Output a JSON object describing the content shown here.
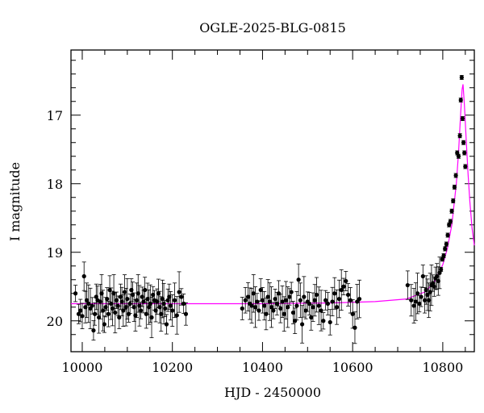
{
  "chart_data": {
    "type": "scatter",
    "title": "OGLE-2025-BLG-0815",
    "xlabel": "HJD - 2450000",
    "ylabel": "I magnitude",
    "xlim": [
      9975,
      10870
    ],
    "ylim": [
      20.45,
      16.05
    ],
    "y_inverted": true,
    "xticks": [
      10000,
      10200,
      10400,
      10600,
      10800
    ],
    "xtick_labels": [
      "10000",
      "10200",
      "10400",
      "10600",
      "10800"
    ],
    "yticks": [
      17,
      18,
      19,
      20
    ],
    "ytick_labels": [
      "17",
      "18",
      "19",
      "20"
    ],
    "grid": false,
    "legend": "none",
    "colors": {
      "points": "#000000",
      "model": "#ff00ff",
      "frame": "#000000"
    },
    "model_curve": {
      "name": "",
      "x": [
        9975,
        10100,
        10250,
        10400,
        10550,
        10650,
        10720,
        10760,
        10780,
        10800,
        10810,
        10820,
        10830,
        10835,
        10840,
        10843,
        10845,
        10848,
        10852,
        10856,
        10860,
        10865,
        10870
      ],
      "y": [
        19.75,
        19.75,
        19.75,
        19.75,
        19.74,
        19.72,
        19.68,
        19.58,
        19.45,
        19.18,
        18.95,
        18.6,
        18.0,
        17.55,
        16.95,
        16.62,
        16.55,
        16.85,
        17.35,
        17.85,
        18.25,
        18.65,
        18.9
      ]
    },
    "series": [
      {
        "x": [
          9985,
          9992,
          9996,
          10000,
          10004,
          10007,
          10010,
          10014,
          10018,
          10022,
          10025,
          10028,
          10031,
          10034,
          10037,
          10040,
          10043,
          10046,
          10049,
          10052,
          10055,
          10058,
          10061,
          10064,
          10067,
          10070,
          10073,
          10076,
          10079,
          10082,
          10085,
          10088,
          10091,
          10094,
          10097,
          10100,
          10103,
          10106,
          10109,
          10112,
          10115,
          10118,
          10121,
          10124,
          10127,
          10130,
          10133,
          10136,
          10139,
          10142,
          10145,
          10148,
          10151,
          10154,
          10157,
          10160,
          10163,
          10166,
          10169,
          10172,
          10175,
          10178,
          10181,
          10184,
          10187,
          10190,
          10193,
          10196,
          10200,
          10205,
          10210,
          10215,
          10220,
          10225,
          10230
        ],
        "y": [
          19.6,
          19.9,
          19.85,
          19.93,
          19.35,
          19.8,
          19.7,
          19.75,
          19.82,
          19.78,
          20.14,
          19.9,
          19.65,
          19.7,
          19.95,
          19.72,
          19.6,
          19.85,
          20.05,
          19.8,
          19.68,
          19.9,
          19.55,
          19.75,
          19.82,
          19.6,
          19.88,
          19.7,
          19.78,
          19.95,
          19.65,
          19.72,
          19.85,
          19.58,
          19.8,
          19.68,
          19.9,
          19.75,
          19.55,
          19.62,
          19.8,
          19.92,
          19.7,
          19.6,
          19.78,
          19.85,
          19.65,
          19.72,
          19.55,
          19.9,
          19.68,
          19.8,
          19.75,
          19.95,
          19.62,
          19.7,
          19.85,
          19.72,
          19.6,
          19.8,
          19.9,
          19.68,
          19.75,
          19.82,
          20.05,
          19.7,
          19.65,
          19.78,
          19.85,
          19.7,
          19.92,
          19.58,
          19.65,
          19.75,
          19.9
        ]
      },
      {
        "x": [
          10355,
          10362,
          10368,
          10372,
          10376,
          10380,
          10384,
          10388,
          10392,
          10396,
          10400,
          10404,
          10408,
          10412,
          10416,
          10420,
          10424,
          10428,
          10432,
          10436,
          10440,
          10444,
          10448,
          10452,
          10456,
          10460,
          10464,
          10468,
          10472,
          10476,
          10480,
          10484,
          10488,
          10492,
          10496,
          10500,
          10504,
          10508,
          10512,
          10516,
          10520,
          10525,
          10530,
          10535,
          10540,
          10545,
          10550,
          10555,
          10560,
          10565,
          10570,
          10575,
          10580,
          10585,
          10590,
          10595,
          10600,
          10605,
          10610,
          10615
        ],
        "y": [
          19.82,
          19.7,
          19.65,
          19.75,
          19.78,
          19.6,
          19.8,
          19.72,
          19.85,
          19.55,
          19.7,
          19.78,
          19.9,
          19.65,
          19.72,
          19.8,
          19.85,
          19.68,
          19.75,
          19.6,
          19.82,
          19.72,
          19.9,
          19.7,
          19.8,
          19.65,
          19.58,
          19.88,
          20.0,
          19.78,
          19.4,
          19.7,
          20.05,
          19.65,
          19.85,
          19.72,
          19.75,
          19.95,
          19.8,
          19.7,
          19.62,
          19.78,
          19.85,
          20.0,
          19.7,
          19.75,
          20.02,
          19.72,
          19.6,
          19.8,
          19.68,
          19.55,
          19.5,
          19.42,
          19.62,
          19.7,
          19.9,
          20.1,
          19.72,
          19.68
        ]
      },
      {
        "x": [
          10722,
          10730,
          10736,
          10740,
          10744,
          10748,
          10752,
          10756,
          10760,
          10763,
          10766,
          10769,
          10772,
          10775,
          10778,
          10781,
          10784,
          10787,
          10790,
          10793,
          10796,
          10799,
          10802,
          10805,
          10808,
          10811,
          10814,
          10817,
          10820,
          10823,
          10826,
          10829,
          10832,
          10835,
          10838,
          10840,
          10842,
          10844,
          10846,
          10848,
          10850
        ],
        "y": [
          19.48,
          19.7,
          19.78,
          19.72,
          19.6,
          19.75,
          19.65,
          19.35,
          19.7,
          19.55,
          19.62,
          19.7,
          19.58,
          19.48,
          19.45,
          19.5,
          19.38,
          19.35,
          19.42,
          19.3,
          19.25,
          19.1,
          19.05,
          18.95,
          18.88,
          18.75,
          18.6,
          18.55,
          18.4,
          18.25,
          18.05,
          17.88,
          17.55,
          17.6,
          17.3,
          16.78,
          16.45,
          17.05,
          17.4,
          17.55,
          17.75
        ]
      }
    ]
  }
}
